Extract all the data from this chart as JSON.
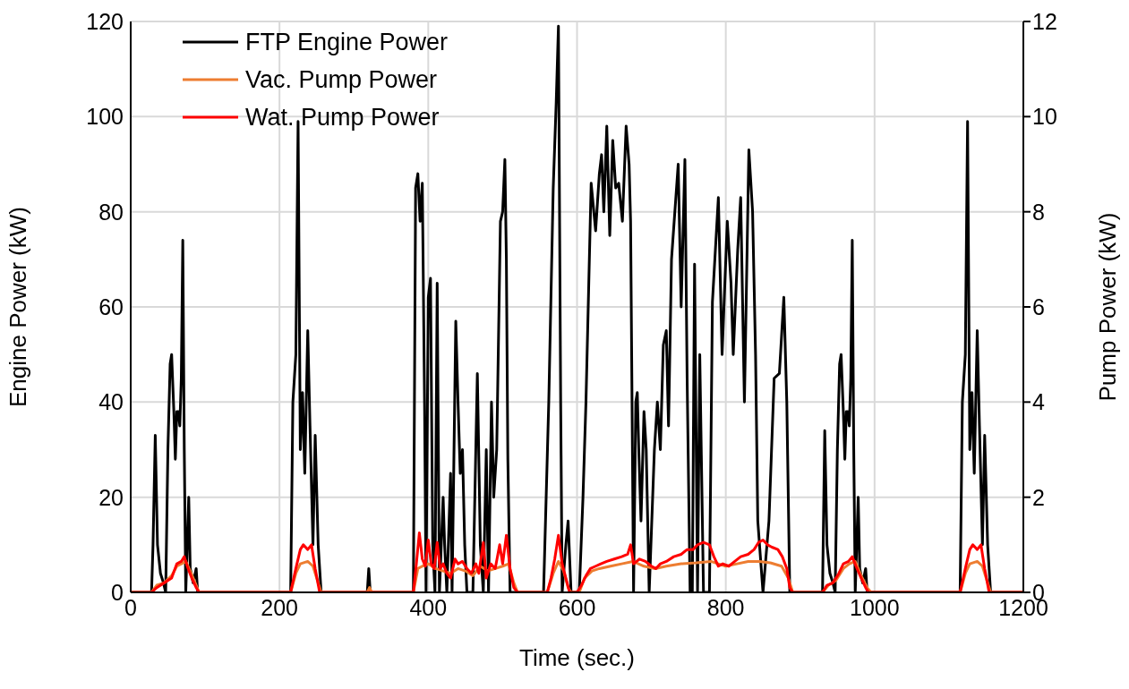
{
  "chart_data": {
    "type": "line",
    "xlabel": "Time (sec.)",
    "ylabel": "Engine Power (kW)",
    "y2label": "Pump Power (kW)",
    "xlim": [
      0,
      1200
    ],
    "xticks": [
      0,
      200,
      400,
      600,
      800,
      1000,
      1200
    ],
    "ylim": [
      0,
      120
    ],
    "yticks": [
      0,
      20,
      40,
      60,
      80,
      100,
      120
    ],
    "y2lim": [
      0,
      12
    ],
    "y2ticks": [
      0,
      2,
      4,
      6,
      8,
      10,
      12
    ],
    "grid": true,
    "legend": "top left",
    "marker": "none",
    "line_style": "solid",
    "series": [
      {
        "name": "FTP Engine Power",
        "color": "#000000",
        "x": [
          0,
          28,
          30,
          33,
          36,
          40,
          44,
          47,
          50,
          53,
          55,
          58,
          60,
          62,
          64,
          66,
          68,
          70,
          72,
          74,
          76,
          78,
          80,
          84,
          88,
          90,
          215,
          218,
          222,
          225,
          228,
          231,
          234,
          238,
          241,
          245,
          248,
          252,
          256,
          318,
          320,
          322,
          380,
          383,
          386,
          389,
          392,
          395,
          397,
          400,
          403,
          406,
          409,
          412,
          415,
          420,
          422,
          425,
          430,
          432,
          437,
          440,
          443,
          446,
          449,
          452,
          460,
          466,
          470,
          474,
          478,
          481,
          485,
          488,
          492,
          497,
          500,
          503,
          505,
          507,
          510,
          555,
          562,
          568,
          572,
          575,
          578,
          580,
          585,
          588,
          592,
          603,
          608,
          612,
          619,
          625,
          630,
          633,
          636,
          640,
          644,
          648,
          652,
          656,
          661,
          666,
          670,
          672,
          676,
          679,
          681,
          683,
          686,
          690,
          693,
          697,
          704,
          708,
          712,
          716,
          720,
          723,
          727,
          736,
          740,
          745,
          748,
          752,
          755,
          758,
          762,
          765,
          770,
          778,
          782,
          790,
          795,
          802,
          807,
          810,
          816,
          820,
          825,
          831,
          836,
          840,
          843,
          850,
          858,
          865,
          872,
          878,
          882,
          886,
          930,
          933,
          936,
          940,
          944,
          947,
          950,
          953,
          955,
          958,
          960,
          962,
          964,
          966,
          968,
          970,
          972,
          974,
          976,
          978,
          980,
          984,
          988,
          990,
          1115,
          1118,
          1122,
          1125,
          1128,
          1131,
          1134,
          1138,
          1141,
          1145,
          1148,
          1152,
          1156,
          1200
        ],
        "values": [
          0,
          0,
          10,
          33,
          10,
          4,
          2,
          0,
          30,
          48,
          50,
          38,
          28,
          38,
          38,
          35,
          45,
          74,
          30,
          0,
          10,
          20,
          5,
          2,
          5,
          0,
          0,
          40,
          50,
          99,
          30,
          42,
          25,
          55,
          35,
          10,
          33,
          10,
          0,
          0,
          5,
          0,
          0,
          85,
          88,
          78,
          86,
          40,
          0,
          62,
          66,
          10,
          0,
          65,
          0,
          20,
          10,
          0,
          25,
          0,
          57,
          40,
          25,
          30,
          10,
          0,
          0,
          46,
          10,
          0,
          30,
          0,
          40,
          20,
          30,
          78,
          80,
          91,
          70,
          28,
          0,
          0,
          40,
          85,
          103,
          119,
          40,
          0,
          10,
          15,
          0,
          0,
          20,
          40,
          86,
          76,
          88,
          92,
          80,
          98,
          75,
          95,
          85,
          86,
          78,
          98,
          90,
          78,
          0,
          40,
          42,
          30,
          15,
          38,
          30,
          0,
          30,
          40,
          30,
          52,
          55,
          35,
          70,
          90,
          60,
          91,
          45,
          0,
          0,
          69,
          0,
          50,
          0,
          0,
          61,
          83,
          50,
          78,
          65,
          50,
          72,
          83,
          40,
          93,
          80,
          50,
          15,
          0,
          15,
          45,
          46,
          62,
          40,
          0,
          0,
          34,
          10,
          4,
          2,
          0,
          30,
          48,
          50,
          38,
          28,
          38,
          38,
          35,
          45,
          74,
          30,
          0,
          10,
          20,
          5,
          2,
          5,
          0,
          0,
          40,
          50,
          99,
          30,
          42,
          25,
          55,
          35,
          10,
          33,
          10,
          0,
          0
        ]
      },
      {
        "name": "Vac. Pump Power",
        "color": "#ed7d31",
        "axis": "y2",
        "x": [
          0,
          28,
          35,
          45,
          55,
          62,
          68,
          74,
          80,
          88,
          92,
          215,
          222,
          228,
          238,
          245,
          250,
          256,
          318,
          321,
          324,
          380,
          386,
          392,
          400,
          410,
          420,
          430,
          440,
          450,
          460,
          470,
          480,
          490,
          500,
          508,
          515,
          520,
          560,
          568,
          575,
          582,
          588,
          592,
          603,
          610,
          620,
          630,
          645,
          660,
          675,
          690,
          705,
          720,
          740,
          760,
          780,
          790,
          800,
          815,
          830,
          845,
          860,
          875,
          884,
          890,
          930,
          938,
          948,
          958,
          966,
          974,
          982,
          990,
          995,
          1115,
          1122,
          1128,
          1138,
          1145,
          1150,
          1156,
          1200
        ],
        "values": [
          0,
          0,
          0.15,
          0.2,
          0.35,
          0.55,
          0.6,
          0.65,
          0.45,
          0.15,
          0,
          0,
          0.4,
          0.6,
          0.65,
          0.55,
          0.3,
          0,
          0,
          0.1,
          0,
          0,
          0.5,
          0.55,
          0.6,
          0.5,
          0.45,
          0.4,
          0.5,
          0.45,
          0.35,
          0.55,
          0.45,
          0.5,
          0.55,
          0.6,
          0.2,
          0,
          0,
          0.4,
          0.65,
          0.45,
          0.1,
          0,
          0,
          0.3,
          0.45,
          0.5,
          0.55,
          0.6,
          0.65,
          0.55,
          0.5,
          0.55,
          0.6,
          0.62,
          0.65,
          0.6,
          0.55,
          0.6,
          0.65,
          0.65,
          0.62,
          0.55,
          0.3,
          0,
          0,
          0.15,
          0.25,
          0.5,
          0.6,
          0.65,
          0.35,
          0.1,
          0,
          0,
          0.4,
          0.6,
          0.65,
          0.55,
          0.3,
          0,
          0
        ]
      },
      {
        "name": "Wat. Pump Power",
        "color": "#ff0000",
        "axis": "y2",
        "x": [
          0,
          28,
          35,
          45,
          55,
          62,
          68,
          72,
          76,
          82,
          88,
          92,
          215,
          222,
          228,
          232,
          238,
          243,
          248,
          254,
          380,
          384,
          388,
          392,
          396,
          400,
          404,
          408,
          412,
          416,
          420,
          425,
          430,
          436,
          440,
          446,
          452,
          458,
          464,
          468,
          474,
          478,
          484,
          490,
          496,
          500,
          505,
          510,
          515,
          520,
          560,
          565,
          570,
          575,
          580,
          585,
          590,
          600,
          606,
          612,
          618,
          625,
          632,
          640,
          650,
          660,
          668,
          672,
          676,
          684,
          692,
          700,
          706,
          712,
          720,
          730,
          740,
          748,
          756,
          762,
          770,
          778,
          784,
          790,
          796,
          804,
          812,
          820,
          830,
          838,
          844,
          850,
          856,
          862,
          870,
          876,
          882,
          886,
          890,
          930,
          936,
          944,
          952,
          958,
          965,
          970,
          975,
          982,
          988,
          992,
          1115,
          1122,
          1128,
          1132,
          1138,
          1143,
          1148,
          1154,
          1200
        ],
        "values": [
          0,
          0,
          0.1,
          0.2,
          0.3,
          0.6,
          0.65,
          0.75,
          0.55,
          0.3,
          0.1,
          0,
          0,
          0.5,
          0.9,
          1.0,
          0.9,
          1.0,
          0.5,
          0,
          0,
          0.6,
          1.25,
          0.7,
          0.55,
          1.1,
          0.6,
          0.5,
          1.05,
          0.5,
          0.6,
          0.4,
          0.3,
          0.7,
          0.6,
          0.65,
          0.5,
          0.4,
          0.6,
          0.4,
          1.05,
          0.3,
          0.6,
          0.5,
          1.0,
          0.6,
          1.2,
          0.5,
          0.1,
          0,
          0,
          0.3,
          0.7,
          1.2,
          0.6,
          0.3,
          0,
          0,
          0.15,
          0.35,
          0.5,
          0.55,
          0.6,
          0.65,
          0.7,
          0.75,
          0.8,
          1.0,
          0.6,
          0.7,
          0.65,
          0.55,
          0.5,
          0.6,
          0.65,
          0.75,
          0.8,
          0.9,
          0.9,
          1.0,
          1.05,
          1.0,
          0.75,
          0.55,
          0.6,
          0.55,
          0.65,
          0.75,
          0.8,
          0.9,
          1.05,
          1.1,
          1.0,
          0.95,
          0.9,
          0.75,
          0.5,
          0.1,
          0,
          0,
          0.15,
          0.2,
          0.4,
          0.6,
          0.65,
          0.75,
          0.55,
          0.3,
          0.1,
          0,
          0,
          0.5,
          0.9,
          1.0,
          0.9,
          1.0,
          0.5,
          0,
          0
        ]
      }
    ]
  }
}
